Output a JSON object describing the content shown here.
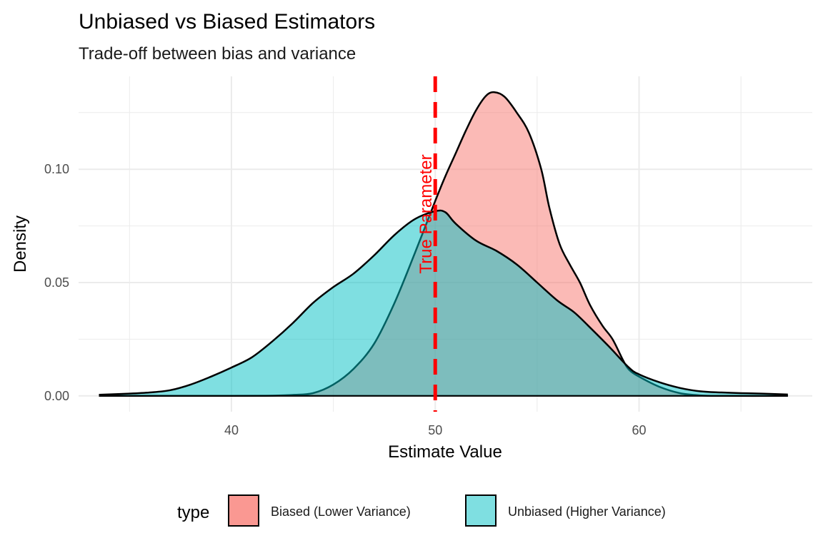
{
  "chart_data": {
    "type": "area",
    "subtype": "density",
    "title": "Unbiased vs Biased Estimators",
    "subtitle": "Trade-off between bias and variance",
    "xlabel": "Estimate Value",
    "ylabel": "Density",
    "xlim": [
      32.5,
      68.5
    ],
    "ylim": [
      -0.007,
      0.141
    ],
    "x_ticks": [
      40,
      50,
      60
    ],
    "x_tick_labels": [
      "40",
      "50",
      "60"
    ],
    "x_minor_ticks": [
      35,
      45,
      55,
      65
    ],
    "y_ticks": [
      0.0,
      0.05,
      0.1
    ],
    "y_tick_labels": [
      "0.00",
      "0.05",
      "0.10"
    ],
    "y_minor_ticks": [
      0.025,
      0.075,
      0.125
    ],
    "grid": true,
    "legend": {
      "title": "type",
      "position": "bottom",
      "entries": [
        "Biased (Lower Variance)",
        "Unbiased (Higher Variance)"
      ]
    },
    "series": [
      {
        "name": "Unbiased (Higher Variance)",
        "color": "#00BFC4",
        "points": [
          [
            33.5,
            0.0005
          ],
          [
            35,
            0.001
          ],
          [
            36,
            0.0015
          ],
          [
            37,
            0.0025
          ],
          [
            38,
            0.005
          ],
          [
            39,
            0.0085
          ],
          [
            40,
            0.0125
          ],
          [
            41,
            0.017
          ],
          [
            42,
            0.024
          ],
          [
            43,
            0.032
          ],
          [
            44,
            0.041
          ],
          [
            45,
            0.048
          ],
          [
            46,
            0.054
          ],
          [
            47,
            0.062
          ],
          [
            48,
            0.071
          ],
          [
            49,
            0.078
          ],
          [
            50,
            0.0815
          ],
          [
            50.5,
            0.081
          ],
          [
            51,
            0.076
          ],
          [
            52,
            0.0685
          ],
          [
            53,
            0.064
          ],
          [
            54,
            0.058
          ],
          [
            55,
            0.05
          ],
          [
            56,
            0.042
          ],
          [
            56.8,
            0.037
          ],
          [
            57.5,
            0.031
          ],
          [
            58.5,
            0.022
          ],
          [
            59.5,
            0.0125
          ],
          [
            60,
            0.0095
          ],
          [
            61,
            0.006
          ],
          [
            62,
            0.0035
          ],
          [
            63,
            0.002
          ],
          [
            64,
            0.0015
          ],
          [
            65,
            0.0012
          ],
          [
            66,
            0.001
          ],
          [
            67.3,
            0.0006
          ]
        ]
      },
      {
        "name": "Biased (Lower Variance)",
        "color": "#F8766D",
        "points": [
          [
            33.5,
            0.0
          ],
          [
            40,
            0.0
          ],
          [
            42,
            0.0001
          ],
          [
            43,
            0.0004
          ],
          [
            44,
            0.0012
          ],
          [
            45,
            0.005
          ],
          [
            46,
            0.012
          ],
          [
            47,
            0.023
          ],
          [
            48,
            0.041
          ],
          [
            49,
            0.063
          ],
          [
            50,
            0.086
          ],
          [
            50.5,
            0.097
          ],
          [
            51,
            0.107
          ],
          [
            51.5,
            0.117
          ],
          [
            52,
            0.126
          ],
          [
            52.5,
            0.1325
          ],
          [
            52.9,
            0.134
          ],
          [
            53.4,
            0.132
          ],
          [
            54,
            0.125
          ],
          [
            54.6,
            0.116
          ],
          [
            55.2,
            0.1
          ],
          [
            55.6,
            0.083
          ],
          [
            56.1,
            0.067
          ],
          [
            56.6,
            0.058
          ],
          [
            57.1,
            0.05
          ],
          [
            57.6,
            0.04
          ],
          [
            58.2,
            0.031
          ],
          [
            58.7,
            0.025
          ],
          [
            59.2,
            0.016
          ],
          [
            59.5,
            0.0116
          ],
          [
            60,
            0.0085
          ],
          [
            61,
            0.004
          ],
          [
            62,
            0.0012
          ],
          [
            63,
            0.0002
          ],
          [
            64,
            0.0
          ],
          [
            67.3,
            0.0
          ]
        ]
      }
    ],
    "reference_line": {
      "x": 50,
      "style": "dashed",
      "color": "#FF0000",
      "label": "True Parameter"
    }
  }
}
